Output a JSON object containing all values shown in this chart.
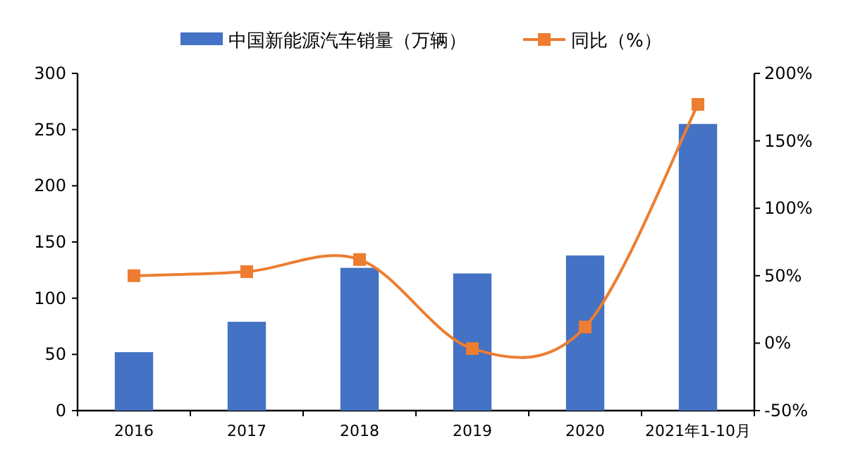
{
  "chart_data": {
    "type": "bar",
    "categories": [
      "2016",
      "2017",
      "2018",
      "2019",
      "2020",
      "2021年1-10月"
    ],
    "series": [
      {
        "name": "中国新能源汽车销量（万辆）",
        "color": "#4472c4",
        "values": [
          52,
          79,
          127,
          122,
          138,
          255
        ]
      },
      {
        "name": "同比（%）",
        "type": "line",
        "axis": "y2",
        "color": "#ed7d31",
        "marker": "square",
        "values": [
          50,
          53,
          62,
          -4,
          12,
          177
        ]
      }
    ],
    "ylim": [
      0,
      300
    ],
    "yticks": [
      0,
      50,
      100,
      150,
      200,
      250,
      300
    ],
    "y2lim": [
      -50,
      200
    ],
    "y2ticks": [
      {
        "value": -50,
        "label": "-50%"
      },
      {
        "value": 0,
        "label": "0%"
      },
      {
        "value": 50,
        "label": "50%"
      },
      {
        "value": 100,
        "label": "100%"
      },
      {
        "value": 150,
        "label": "150%"
      },
      {
        "value": 200,
        "label": "200%"
      }
    ],
    "grid": false,
    "legend": "top"
  }
}
